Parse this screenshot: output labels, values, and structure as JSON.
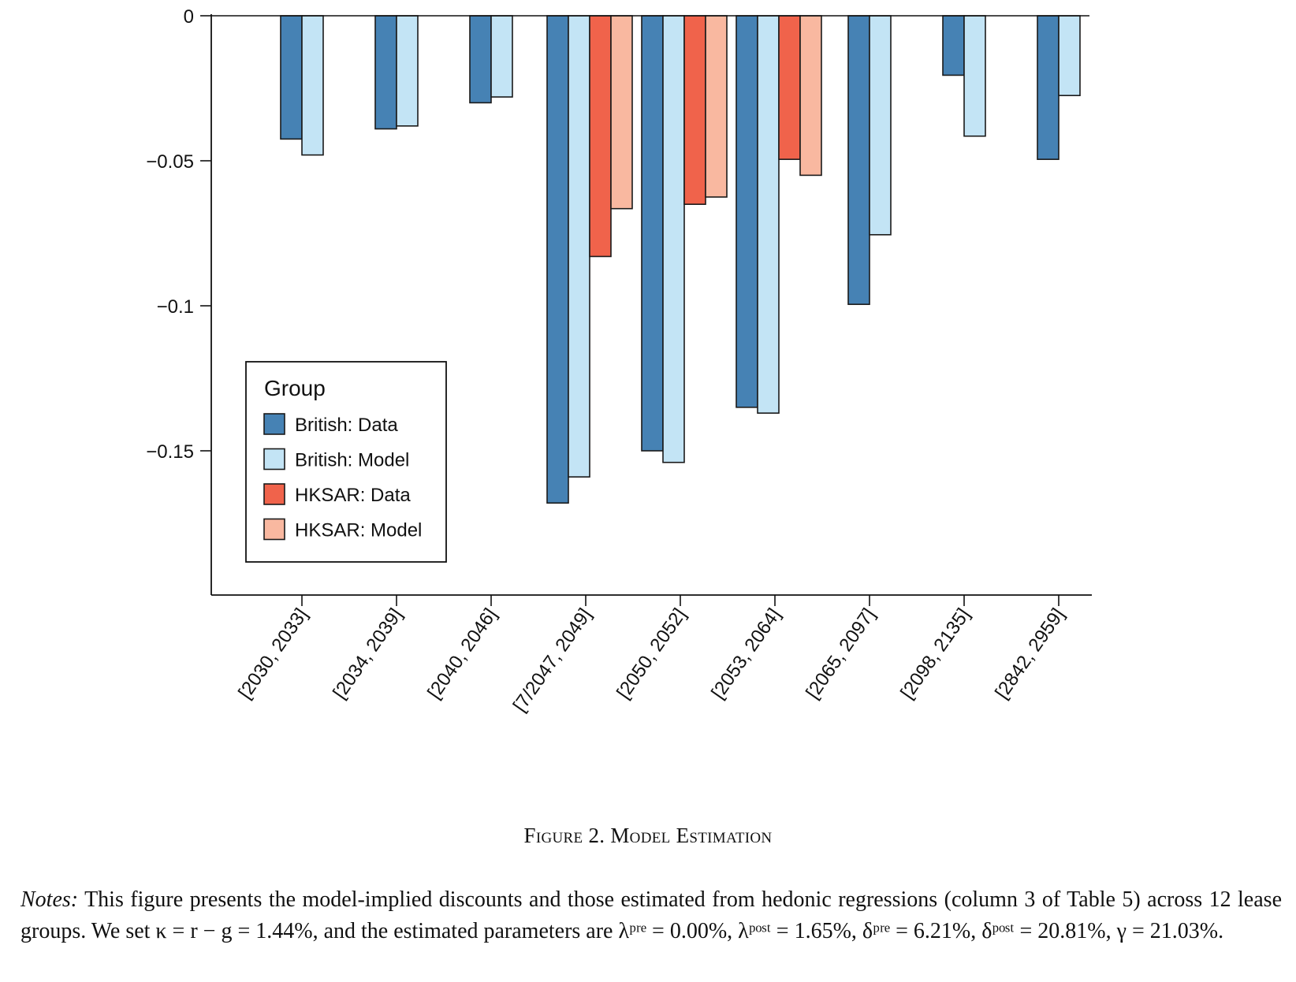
{
  "chart_data": {
    "type": "bar",
    "categories": [
      "[2030, 2033]",
      "[2034, 2039]",
      "[2040, 2046]",
      "[7/2047, 2049]",
      "[2050, 2052]",
      "[2053, 2064]",
      "[2065, 2097]",
      "[2098, 2135]",
      "[2842, 2959]"
    ],
    "series": [
      {
        "name": "British: Data",
        "color": "#4682b4",
        "values": [
          -0.0425,
          -0.039,
          -0.03,
          -0.168,
          -0.15,
          -0.135,
          -0.0995,
          -0.0205,
          -0.0495
        ]
      },
      {
        "name": "British: Model",
        "color": "#c3e4f5",
        "values": [
          -0.048,
          -0.038,
          -0.028,
          -0.159,
          -0.154,
          -0.137,
          -0.0755,
          -0.0415,
          -0.0275
        ]
      },
      {
        "name": "HKSAR: Data",
        "color": "#f0634b",
        "values": [
          null,
          null,
          null,
          -0.083,
          -0.065,
          -0.0495,
          null,
          null,
          null
        ]
      },
      {
        "name": "HKSAR: Model",
        "color": "#f9b8a0",
        "values": [
          null,
          null,
          null,
          -0.0665,
          -0.0625,
          -0.055,
          null,
          null,
          null
        ]
      }
    ],
    "title": "",
    "xlabel": "",
    "ylabel": "",
    "ylim": [
      -0.2,
      0
    ],
    "yticks": [
      0,
      -0.05,
      -0.1,
      -0.15
    ],
    "ytick_labels": [
      "0",
      "−0.05",
      "−0.1",
      "−0.15"
    ],
    "grid": false,
    "legend": {
      "title": "Group",
      "placement": "bottom-left"
    }
  },
  "caption": "Figure 2. Model Estimation",
  "notes": {
    "label": "Notes:",
    "text": "This figure presents the model-implied discounts and those estimated from hedonic regressions (column 3 of Table 5) across 12 lease groups. We set κ = r − g = 1.44%, and the estimated parameters are λᵖʳᵉ = 0.00%, λᵖᵒˢᵗ = 1.65%, δᵖʳᵉ = 6.21%, δᵖᵒˢᵗ = 20.81%, γ = 21.03%."
  }
}
